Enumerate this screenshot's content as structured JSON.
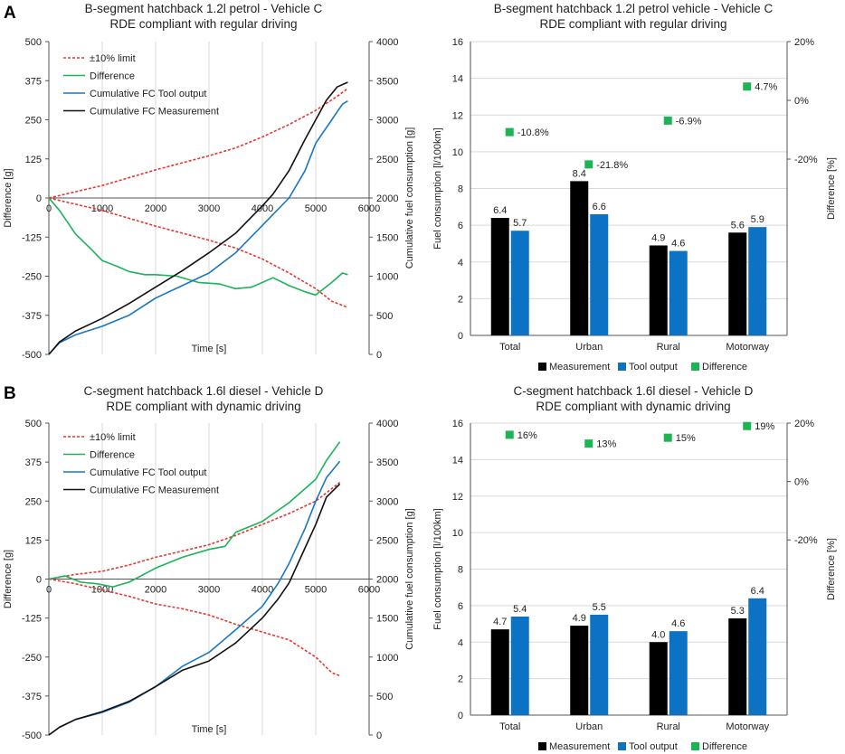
{
  "panel_letters": [
    "A",
    "B"
  ],
  "colors": {
    "limit": "#e8352c",
    "difference": "#1ab45a",
    "tool": "#1877c2",
    "measurement": "#111111",
    "bar_measurement": "#000000",
    "bar_tool": "#0b72c4",
    "marker_difference": "#1db453",
    "grid": "#d9d9d9",
    "axis": "#555555"
  },
  "chart_data": [
    {
      "id": "A-line",
      "type": "line",
      "title": "B-segment hatchback 1.2l petrol - Vehicle C",
      "subtitle": "RDE compliant with regular driving",
      "xlabel": "Time [s]",
      "ylabel": "Difference [g]",
      "y2label": "Cumulative fuel consumption [g]",
      "xlim": [
        0,
        6000
      ],
      "ylim": [
        -500,
        500
      ],
      "y2lim": [
        0,
        4000
      ],
      "xticks": [
        "0",
        "1000",
        "2000",
        "3000",
        "4000",
        "5000",
        "6000"
      ],
      "yticks": [
        "500",
        "375",
        "250",
        "125",
        "0",
        "-125",
        "-250",
        "-375",
        "-500"
      ],
      "y2ticks": [
        "4000",
        "3500",
        "3000",
        "2500",
        "2000",
        "1500",
        "1000",
        "500",
        "0"
      ],
      "grid": "vertical",
      "legend": [
        "±10% limit",
        "Difference",
        "Cumulative FC Tool output",
        "Cumulative FC Measurement"
      ],
      "series": [
        {
          "name": "±10% limit (upper)",
          "axis": "left",
          "style": "dashed",
          "color_key": "limit",
          "x": [
            0,
            500,
            1000,
            2000,
            3000,
            3500,
            4000,
            4500,
            5000,
            5400,
            5600
          ],
          "y": [
            0,
            20,
            40,
            90,
            135,
            160,
            195,
            235,
            280,
            325,
            350
          ]
        },
        {
          "name": "±10% limit (lower)",
          "axis": "left",
          "style": "dashed",
          "color_key": "limit",
          "x": [
            0,
            500,
            1000,
            2000,
            3000,
            3500,
            4000,
            4500,
            5000,
            5300,
            5600
          ],
          "y": [
            0,
            -20,
            -40,
            -90,
            -135,
            -160,
            -195,
            -240,
            -290,
            -330,
            -350
          ]
        },
        {
          "name": "Difference",
          "axis": "left",
          "style": "solid",
          "color_key": "difference",
          "x": [
            0,
            200,
            500,
            800,
            1000,
            1300,
            1500,
            1800,
            2000,
            2400,
            2800,
            3200,
            3500,
            3800,
            4200,
            4500,
            4800,
            5000,
            5300,
            5500,
            5600
          ],
          "y": [
            0,
            -40,
            -115,
            -165,
            -200,
            -220,
            -235,
            -245,
            -245,
            -250,
            -270,
            -275,
            -290,
            -285,
            -255,
            -280,
            -300,
            -310,
            -270,
            -240,
            -245
          ]
        },
        {
          "name": "Cumulative FC Tool output",
          "axis": "right",
          "style": "solid",
          "color_key": "tool",
          "x": [
            0,
            200,
            500,
            1000,
            1500,
            2000,
            2500,
            3000,
            3500,
            4000,
            4500,
            4800,
            5000,
            5300,
            5500,
            5600
          ],
          "y": [
            0,
            150,
            250,
            360,
            500,
            720,
            880,
            1040,
            1300,
            1650,
            2000,
            2350,
            2700,
            3000,
            3200,
            3240
          ]
        },
        {
          "name": "Cumulative FC Measurement",
          "axis": "right",
          "style": "solid",
          "color_key": "measurement",
          "x": [
            0,
            200,
            500,
            1000,
            1500,
            2000,
            2500,
            3000,
            3500,
            4000,
            4200,
            4500,
            4800,
            5000,
            5200,
            5400,
            5600
          ],
          "y": [
            0,
            160,
            300,
            460,
            650,
            860,
            1070,
            1300,
            1550,
            1900,
            2050,
            2350,
            2750,
            3000,
            3250,
            3420,
            3480
          ]
        }
      ]
    },
    {
      "id": "A-bar",
      "type": "bar",
      "title": "B-segment hatchback 1.2l petrol vehicle - Vehicle C",
      "subtitle": "RDE compliant with regular driving",
      "ylabel": "Fuel consumption [l/100km]",
      "y2label": "Difference [%]",
      "ylim": [
        0,
        16
      ],
      "y2lim": [
        -80,
        20
      ],
      "yticks": [
        "16",
        "14",
        "12",
        "10",
        "8",
        "6",
        "4",
        "2",
        "0"
      ],
      "y2ticks": [
        "20%",
        "0%",
        "-20%"
      ],
      "categories": [
        "Total",
        "Urban",
        "Rural",
        "Motorway"
      ],
      "legend": [
        "Measurement",
        "Tool output",
        "Difference"
      ],
      "series": [
        {
          "name": "Measurement",
          "values": [
            6.4,
            8.4,
            4.9,
            5.6
          ],
          "labels": [
            "6.4",
            "8.4",
            "4.9",
            "5.6"
          ]
        },
        {
          "name": "Tool output",
          "values": [
            5.7,
            6.6,
            4.6,
            5.9
          ],
          "labels": [
            "5.7",
            "6.6",
            "4.6",
            "5.9"
          ]
        },
        {
          "name": "Difference",
          "values": [
            -10.8,
            -21.8,
            -6.9,
            4.7
          ],
          "labels": [
            "-10.8%",
            "-21.8%",
            "-6.9%",
            "4.7%"
          ]
        }
      ]
    },
    {
      "id": "B-line",
      "type": "line",
      "title": "C-segment hatchback 1.6l diesel - Vehicle D",
      "subtitle": "RDE compliant with dynamic driving",
      "xlabel": "Time [s]",
      "ylabel": "Difference [g]",
      "y2label": "Cumulative fuel consumption [g]",
      "xlim": [
        0,
        6000
      ],
      "ylim": [
        -500,
        500
      ],
      "y2lim": [
        0,
        4000
      ],
      "xticks": [
        "0",
        "1000",
        "2000",
        "3000",
        "4000",
        "5000",
        "6000"
      ],
      "yticks": [
        "500",
        "375",
        "250",
        "125",
        "0",
        "-125",
        "-250",
        "-375",
        "-500"
      ],
      "y2ticks": [
        "4000",
        "3500",
        "3000",
        "2500",
        "2000",
        "1500",
        "1000",
        "500",
        "0"
      ],
      "grid": "vertical",
      "legend": [
        "±10% limit",
        "Difference",
        "Cumulative FC Tool output",
        "Cumulative FC Measurement"
      ],
      "series": [
        {
          "name": "±10% limit (upper)",
          "axis": "left",
          "style": "dashed",
          "color_key": "limit",
          "x": [
            0,
            500,
            1000,
            1500,
            2000,
            2500,
            3000,
            3500,
            4000,
            4500,
            5000,
            5300,
            5450
          ],
          "y": [
            0,
            15,
            25,
            45,
            70,
            90,
            110,
            140,
            175,
            210,
            250,
            290,
            310
          ]
        },
        {
          "name": "±10% limit (lower)",
          "axis": "left",
          "style": "dashed",
          "color_key": "limit",
          "x": [
            0,
            500,
            1000,
            1500,
            2000,
            2500,
            3000,
            3500,
            4000,
            4500,
            5000,
            5300,
            5450
          ],
          "y": [
            0,
            -15,
            -35,
            -55,
            -80,
            -95,
            -115,
            -145,
            -170,
            -195,
            -250,
            -300,
            -310
          ]
        },
        {
          "name": "Difference",
          "axis": "left",
          "style": "solid",
          "color_key": "difference",
          "x": [
            0,
            300,
            600,
            900,
            1200,
            1500,
            2000,
            2500,
            3000,
            3300,
            3500,
            4000,
            4500,
            5000,
            5200,
            5450
          ],
          "y": [
            0,
            10,
            -10,
            -15,
            -25,
            -10,
            35,
            70,
            95,
            105,
            150,
            185,
            245,
            320,
            380,
            440
          ]
        },
        {
          "name": "Cumulative FC Tool output",
          "axis": "right",
          "style": "solid",
          "color_key": "tool",
          "x": [
            0,
            200,
            500,
            1000,
            1500,
            2000,
            2500,
            3000,
            3500,
            4000,
            4300,
            4500,
            4800,
            5000,
            5200,
            5450
          ],
          "y": [
            0,
            100,
            200,
            290,
            420,
            620,
            880,
            1060,
            1350,
            1650,
            1950,
            2200,
            2650,
            3000,
            3300,
            3510
          ]
        },
        {
          "name": "Cumulative FC Measurement",
          "axis": "right",
          "style": "solid",
          "color_key": "measurement",
          "x": [
            0,
            200,
            500,
            1000,
            1500,
            2000,
            2500,
            3000,
            3500,
            4000,
            4300,
            4500,
            4800,
            5000,
            5200,
            5450
          ],
          "y": [
            0,
            100,
            200,
            300,
            430,
            620,
            830,
            950,
            1180,
            1500,
            1750,
            1950,
            2400,
            2700,
            3050,
            3220
          ]
        }
      ]
    },
    {
      "id": "B-bar",
      "type": "bar",
      "title": "C-segment hatchback 1.6l diesel - Vehicle D",
      "subtitle": "RDE compliant with dynamic driving",
      "ylabel": "Fuel consumption [l/100km]",
      "y2label": "Difference [%]",
      "ylim": [
        0,
        16
      ],
      "y2lim": [
        -80,
        20
      ],
      "yticks": [
        "16",
        "14",
        "12",
        "10",
        "8",
        "6",
        "4",
        "2",
        "0"
      ],
      "y2ticks": [
        "20%",
        "0%",
        "-20%"
      ],
      "categories": [
        "Total",
        "Urban",
        "Rural",
        "Motorway"
      ],
      "legend": [
        "Measurement",
        "Tool output",
        "Difference"
      ],
      "series": [
        {
          "name": "Measurement",
          "values": [
            4.7,
            4.9,
            4.0,
            5.3
          ],
          "labels": [
            "4.7",
            "4.9",
            "4.0",
            "5.3"
          ]
        },
        {
          "name": "Tool output",
          "values": [
            5.4,
            5.5,
            4.6,
            6.4
          ],
          "labels": [
            "5.4",
            "5.5",
            "4.6",
            "6.4"
          ]
        },
        {
          "name": "Difference",
          "values": [
            16,
            13,
            15,
            19
          ],
          "labels": [
            "16%",
            "13%",
            "15%",
            "19%"
          ]
        }
      ]
    }
  ]
}
